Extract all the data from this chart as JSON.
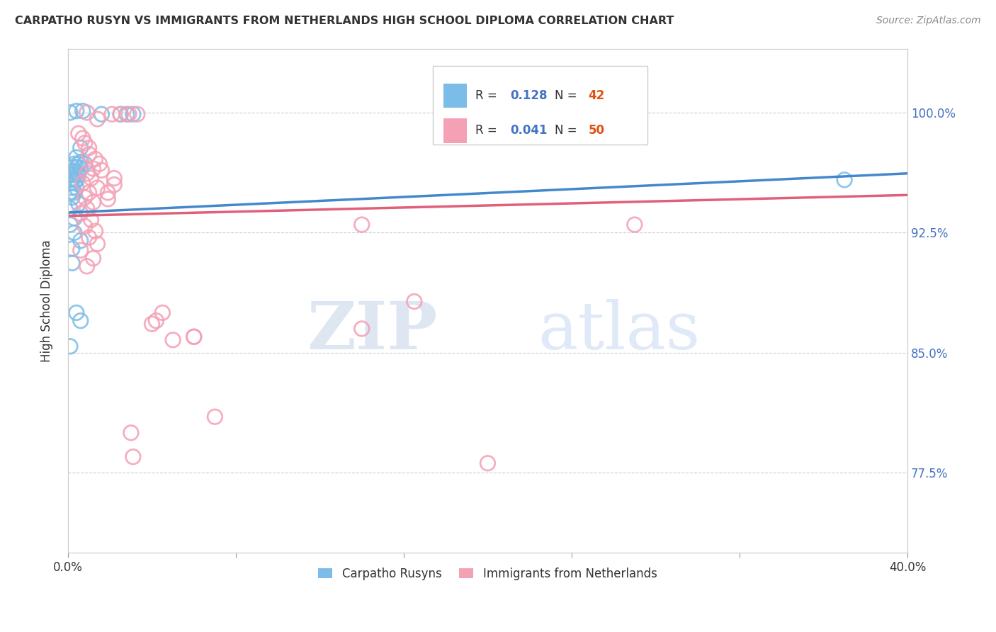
{
  "title": "CARPATHO RUSYN VS IMMIGRANTS FROM NETHERLANDS HIGH SCHOOL DIPLOMA CORRELATION CHART",
  "source": "Source: ZipAtlas.com",
  "ylabel": "High School Diploma",
  "ytick_labels": [
    "77.5%",
    "85.0%",
    "92.5%",
    "100.0%"
  ],
  "ytick_values": [
    0.775,
    0.85,
    0.925,
    1.0
  ],
  "xlim": [
    0.0,
    0.4
  ],
  "ylim": [
    0.725,
    1.04
  ],
  "legend_blue_R": "0.128",
  "legend_blue_N": "42",
  "legend_pink_R": "0.041",
  "legend_pink_N": "50",
  "legend_label_blue": "Carpatho Rusyns",
  "legend_label_pink": "Immigrants from Netherlands",
  "blue_color": "#7bbde8",
  "pink_color": "#f4a0b5",
  "blue_line_color": "#4488cc",
  "pink_line_color": "#e0607a",
  "blue_line": [
    0.0,
    0.9375,
    0.4,
    0.962
  ],
  "pink_line": [
    0.0,
    0.9355,
    0.4,
    0.9485
  ],
  "blue_scatter": [
    [
      0.001,
      1.0
    ],
    [
      0.004,
      1.001
    ],
    [
      0.007,
      1.001
    ],
    [
      0.016,
      0.999
    ],
    [
      0.025,
      0.999
    ],
    [
      0.028,
      0.999
    ],
    [
      0.031,
      0.999
    ],
    [
      0.006,
      0.978
    ],
    [
      0.004,
      0.972
    ],
    [
      0.006,
      0.969
    ],
    [
      0.003,
      0.968
    ],
    [
      0.005,
      0.968
    ],
    [
      0.008,
      0.968
    ],
    [
      0.002,
      0.966
    ],
    [
      0.004,
      0.966
    ],
    [
      0.006,
      0.965
    ],
    [
      0.002,
      0.963
    ],
    [
      0.004,
      0.963
    ],
    [
      0.001,
      0.961
    ],
    [
      0.003,
      0.961
    ],
    [
      0.005,
      0.961
    ],
    [
      0.002,
      0.958
    ],
    [
      0.004,
      0.958
    ],
    [
      0.001,
      0.956
    ],
    [
      0.003,
      0.956
    ],
    [
      0.002,
      0.953
    ],
    [
      0.004,
      0.953
    ],
    [
      0.001,
      0.95
    ],
    [
      0.003,
      0.95
    ],
    [
      0.002,
      0.947
    ],
    [
      0.005,
      0.943
    ],
    [
      0.001,
      0.94
    ],
    [
      0.003,
      0.934
    ],
    [
      0.001,
      0.93
    ],
    [
      0.003,
      0.925
    ],
    [
      0.006,
      0.92
    ],
    [
      0.002,
      0.915
    ],
    [
      0.002,
      0.906
    ],
    [
      0.004,
      0.875
    ],
    [
      0.006,
      0.87
    ],
    [
      0.001,
      0.854
    ],
    [
      0.37,
      0.958
    ]
  ],
  "pink_scatter": [
    [
      0.009,
      1.0
    ],
    [
      0.021,
      0.999
    ],
    [
      0.025,
      0.999
    ],
    [
      0.029,
      0.999
    ],
    [
      0.033,
      0.999
    ],
    [
      0.014,
      0.996
    ],
    [
      0.005,
      0.987
    ],
    [
      0.007,
      0.984
    ],
    [
      0.008,
      0.981
    ],
    [
      0.01,
      0.978
    ],
    [
      0.01,
      0.974
    ],
    [
      0.013,
      0.971
    ],
    [
      0.015,
      0.968
    ],
    [
      0.012,
      0.965
    ],
    [
      0.009,
      0.962
    ],
    [
      0.011,
      0.959
    ],
    [
      0.007,
      0.956
    ],
    [
      0.014,
      0.953
    ],
    [
      0.01,
      0.95
    ],
    [
      0.008,
      0.947
    ],
    [
      0.012,
      0.944
    ],
    [
      0.009,
      0.94
    ],
    [
      0.006,
      0.937
    ],
    [
      0.011,
      0.933
    ],
    [
      0.008,
      0.929
    ],
    [
      0.013,
      0.926
    ],
    [
      0.01,
      0.922
    ],
    [
      0.014,
      0.918
    ],
    [
      0.006,
      0.914
    ],
    [
      0.012,
      0.909
    ],
    [
      0.009,
      0.904
    ],
    [
      0.016,
      0.964
    ],
    [
      0.022,
      0.959
    ],
    [
      0.022,
      0.955
    ],
    [
      0.019,
      0.95
    ],
    [
      0.019,
      0.946
    ],
    [
      0.14,
      0.93
    ],
    [
      0.14,
      0.865
    ],
    [
      0.27,
      0.93
    ],
    [
      0.165,
      0.882
    ],
    [
      0.06,
      0.86
    ],
    [
      0.04,
      0.868
    ],
    [
      0.06,
      0.86
    ],
    [
      0.05,
      0.858
    ],
    [
      0.045,
      0.875
    ],
    [
      0.042,
      0.87
    ],
    [
      0.03,
      0.8
    ],
    [
      0.07,
      0.81
    ],
    [
      0.031,
      0.785
    ],
    [
      0.2,
      0.781
    ]
  ],
  "watermark_zip": "ZIP",
  "watermark_atlas": "atlas",
  "background_color": "#ffffff"
}
